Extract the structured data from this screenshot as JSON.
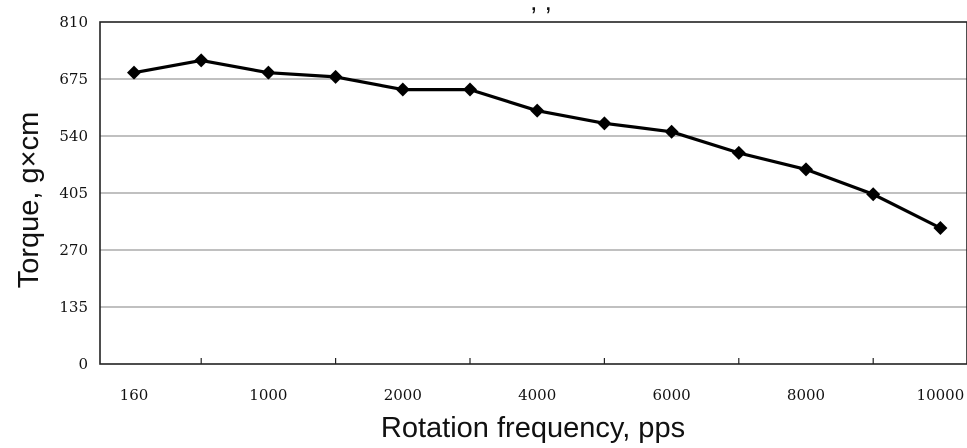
{
  "chart_data": {
    "type": "line",
    "title": ", , ",
    "xlabel": "Rotation frequency, pps",
    "ylabel": "Torque, g×cm",
    "ylim": [
      0,
      810
    ],
    "y_ticks": [
      "810",
      "675",
      "540",
      "405",
      "270",
      "135",
      "0"
    ],
    "x_tick_labels": [
      "160",
      "1000",
      "2000",
      "4000",
      "6000",
      "8000",
      "10000"
    ],
    "categories": [
      "160",
      "",
      "1000",
      "",
      "2000",
      "",
      "4000",
      "",
      "6000",
      "",
      "8000",
      "",
      "10000"
    ],
    "grid": "horizontal",
    "series": [
      {
        "color": "#000000",
        "marker": "diamond",
        "values": [
          690,
          719,
          690,
          680,
          650,
          650,
          600,
          570,
          550,
          500,
          461,
          402,
          322
        ]
      }
    ]
  }
}
